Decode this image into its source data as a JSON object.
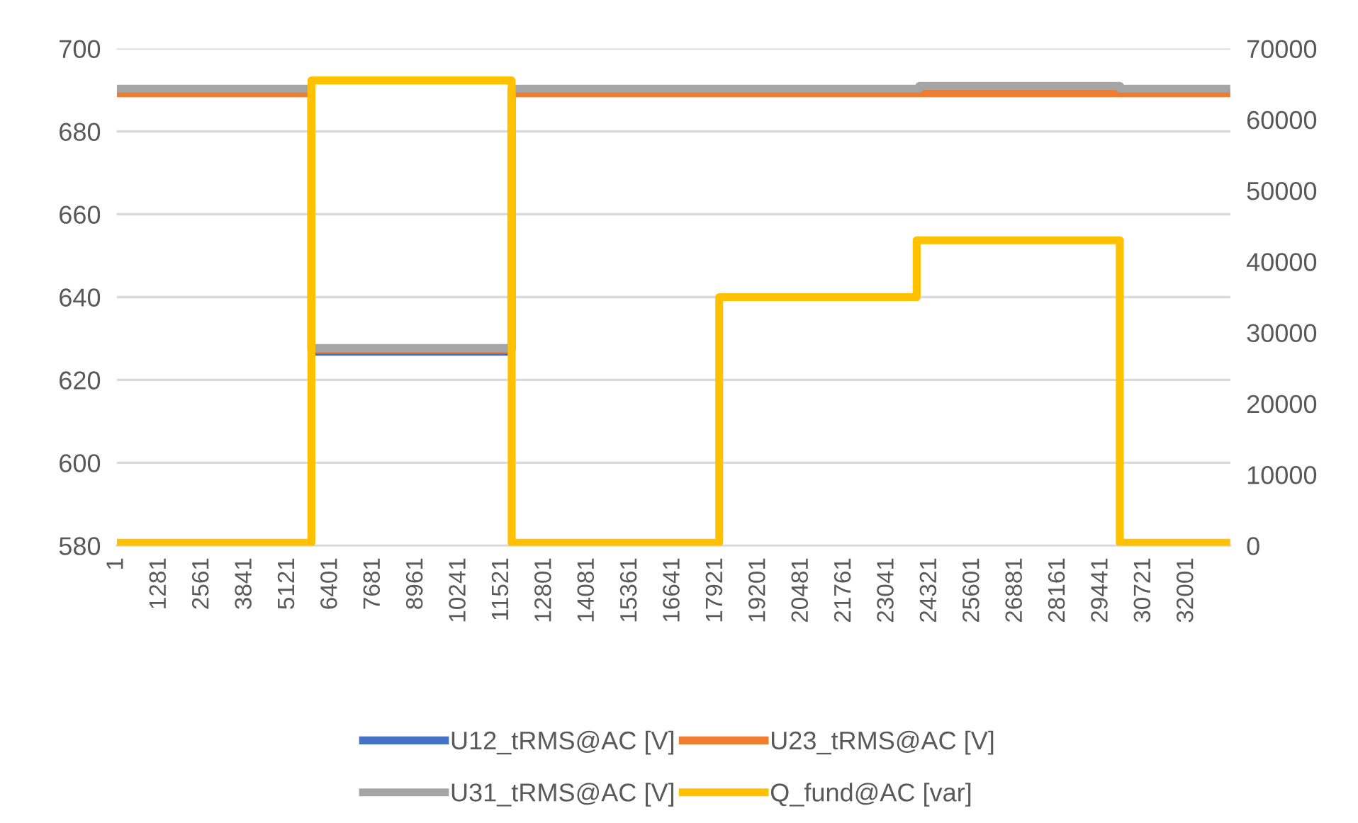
{
  "chart_data": {
    "type": "line",
    "xlim": [
      1,
      33300
    ],
    "xticks": [
      1,
      1281,
      2561,
      3841,
      5121,
      6401,
      7681,
      8961,
      10241,
      11521,
      12801,
      14081,
      15361,
      16641,
      17921,
      19201,
      20481,
      21761,
      23041,
      24321,
      25601,
      26881,
      28161,
      29441,
      30721,
      32001
    ],
    "ylim": [
      580,
      700
    ],
    "yticks": [
      580,
      600,
      620,
      640,
      660,
      680,
      700
    ],
    "y2lim": [
      0,
      70000
    ],
    "y2ticks": [
      0,
      10000,
      20000,
      30000,
      40000,
      50000,
      60000,
      70000
    ],
    "grid": "y",
    "legend": "bottom",
    "line_style": "solid",
    "marker": "none",
    "series": [
      {
        "name": "U12_tRMS@AC [V]",
        "color": "#4472c4",
        "x": [
          5820,
          11810
        ],
        "values": [
          626.8,
          626.8
        ]
      },
      {
        "name": "U23_tRMS@AC [V]",
        "color": "#ed7d31",
        "x": [
          1,
          5820,
          5820,
          11810,
          11810,
          33300
        ],
        "values": [
          689.2,
          689.2,
          627.3,
          627.3,
          689.2,
          689.2
        ]
      },
      {
        "name": "U31_tRMS@AC [V]",
        "color": "#a5a5a5",
        "x": [
          1,
          5820,
          5820,
          11810,
          11810,
          24000,
          24000,
          30000,
          30000,
          33300
        ],
        "values": [
          690.3,
          690.3,
          627.7,
          627.7,
          690.3,
          690.3,
          691,
          691,
          690.3,
          690.3
        ]
      },
      {
        "name": "Q_fund@AC [var]",
        "color": "#ffc000",
        "axis": "y2",
        "x": [
          1,
          5820,
          5820,
          11810,
          11810,
          18015,
          18015,
          23920,
          23920,
          29995,
          29995,
          33300
        ],
        "values": [
          400,
          400,
          65500,
          65500,
          400,
          400,
          35000,
          35000,
          43000,
          43000,
          400,
          400
        ]
      }
    ]
  }
}
